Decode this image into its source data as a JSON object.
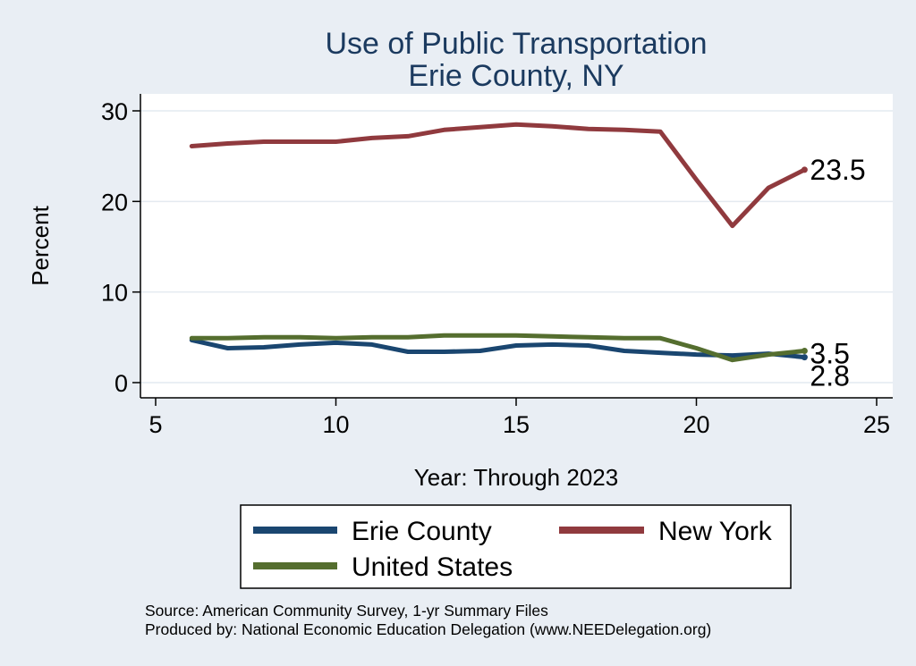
{
  "chart_data": {
    "type": "line",
    "title": "Use of Public Transportation",
    "subtitle": "Erie County, NY",
    "xlabel": "Year: Through 2023",
    "ylabel": "Percent",
    "xlim": [
      5,
      25
    ],
    "ylim": [
      0,
      30
    ],
    "x_ticks": [
      "5",
      "10",
      "15",
      "20",
      "25"
    ],
    "y_ticks": [
      "0",
      "10",
      "20",
      "30"
    ],
    "grid": "horizontal",
    "legend_position": "bottom",
    "x": [
      6,
      7,
      8,
      9,
      10,
      11,
      12,
      13,
      14,
      15,
      16,
      17,
      18,
      19,
      20,
      21,
      22,
      23
    ],
    "series": [
      {
        "name": "Erie County",
        "color": "#1a4670",
        "end_label": "2.8",
        "values": [
          4.7,
          3.8,
          3.9,
          4.2,
          4.4,
          4.2,
          3.4,
          3.4,
          3.5,
          4.1,
          4.2,
          4.1,
          3.5,
          3.3,
          3.1,
          3.0,
          3.2,
          2.8
        ]
      },
      {
        "name": "New York",
        "color": "#903a3e",
        "end_label": "23.5",
        "values": [
          26.1,
          26.4,
          26.6,
          26.6,
          26.6,
          27.0,
          27.2,
          27.9,
          28.2,
          28.5,
          28.3,
          28.0,
          27.9,
          27.7,
          22.4,
          17.3,
          21.5,
          23.5
        ]
      },
      {
        "name": "United States",
        "color": "#556e2f",
        "end_label": "3.5",
        "values": [
          4.9,
          4.9,
          5.0,
          5.0,
          4.9,
          5.0,
          5.0,
          5.2,
          5.2,
          5.2,
          5.1,
          5.0,
          4.9,
          4.9,
          3.8,
          2.5,
          3.1,
          3.5
        ]
      }
    ],
    "legend_order": [
      "Erie County",
      "New York",
      "United States"
    ],
    "notes": [
      "Source: American Community Survey, 1-yr Summary Files",
      "Produced by: National Economic Education Delegation (www.NEEDelegation.org)"
    ]
  }
}
